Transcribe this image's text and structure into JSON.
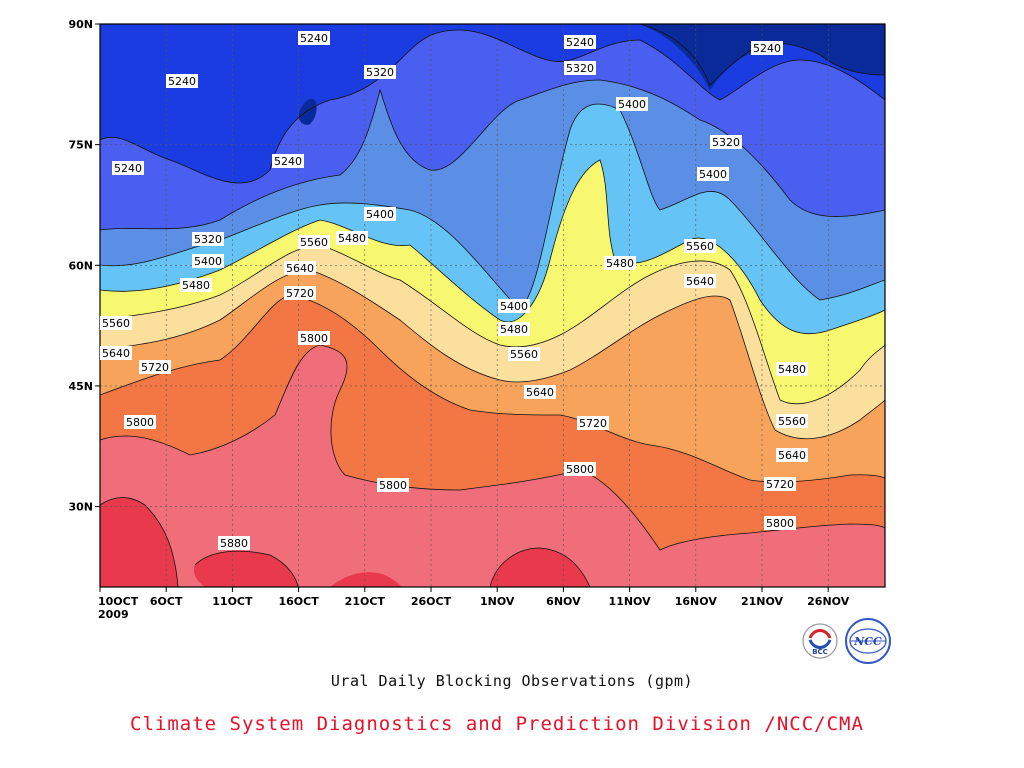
{
  "chart_title": "Ural Daily Blocking Observations (gpm)",
  "credit": "Climate System Diagnostics and Prediction Division /NCC/CMA",
  "logos": [
    {
      "name": "BCC",
      "text": "BCC"
    },
    {
      "name": "NCC",
      "text": "NCC"
    }
  ],
  "chart_data": {
    "type": "contour",
    "title": "Ural Daily Blocking Observations (gpm)",
    "grid": "dotted",
    "x_ticks": [
      "10OCT",
      "6OCT",
      "11OCT",
      "16OCT",
      "21OCT",
      "26OCT",
      "1NOV",
      "6NOV",
      "11NOV",
      "16NOV",
      "21NOV",
      "26NOV"
    ],
    "x_year_label": "2009",
    "y_ticks": [
      "90N",
      "75N",
      "60N",
      "45N",
      "30N"
    ],
    "ylim_deg": [
      20,
      90
    ],
    "levels": [
      5240,
      5320,
      5400,
      5480,
      5560,
      5640,
      5720,
      5800,
      5880
    ],
    "level_colors": [
      "#0a2a9a",
      "#1a3ce0",
      "#4a5ef0",
      "#5b8fe6",
      "#66c3f5",
      "#f8f870",
      "#fbdf9c",
      "#f7a35c",
      "#f37745",
      "#f06e7a",
      "#e9394c"
    ],
    "contour_labels": [
      {
        "text": "5240"
      },
      {
        "text": "5240"
      },
      {
        "text": "5240"
      },
      {
        "text": "5240"
      },
      {
        "text": "5240"
      },
      {
        "text": "5240"
      },
      {
        "text": "5320"
      },
      {
        "text": "5320"
      },
      {
        "text": "5320"
      },
      {
        "text": "5320"
      },
      {
        "text": "5400"
      },
      {
        "text": "5400"
      },
      {
        "text": "5400"
      },
      {
        "text": "5400"
      },
      {
        "text": "5400"
      },
      {
        "text": "5480"
      },
      {
        "text": "5480"
      },
      {
        "text": "5480"
      },
      {
        "text": "5480"
      },
      {
        "text": "5480"
      },
      {
        "text": "5560"
      },
      {
        "text": "5560"
      },
      {
        "text": "5560"
      },
      {
        "text": "5560"
      },
      {
        "text": "5560"
      },
      {
        "text": "5640"
      },
      {
        "text": "5640"
      },
      {
        "text": "5640"
      },
      {
        "text": "5640"
      },
      {
        "text": "5640"
      },
      {
        "text": "5720"
      },
      {
        "text": "5720"
      },
      {
        "text": "5720"
      },
      {
        "text": "5720"
      },
      {
        "text": "5800"
      },
      {
        "text": "5800"
      },
      {
        "text": "5800"
      },
      {
        "text": "5800"
      },
      {
        "text": "5800"
      },
      {
        "text": "5880"
      }
    ]
  }
}
